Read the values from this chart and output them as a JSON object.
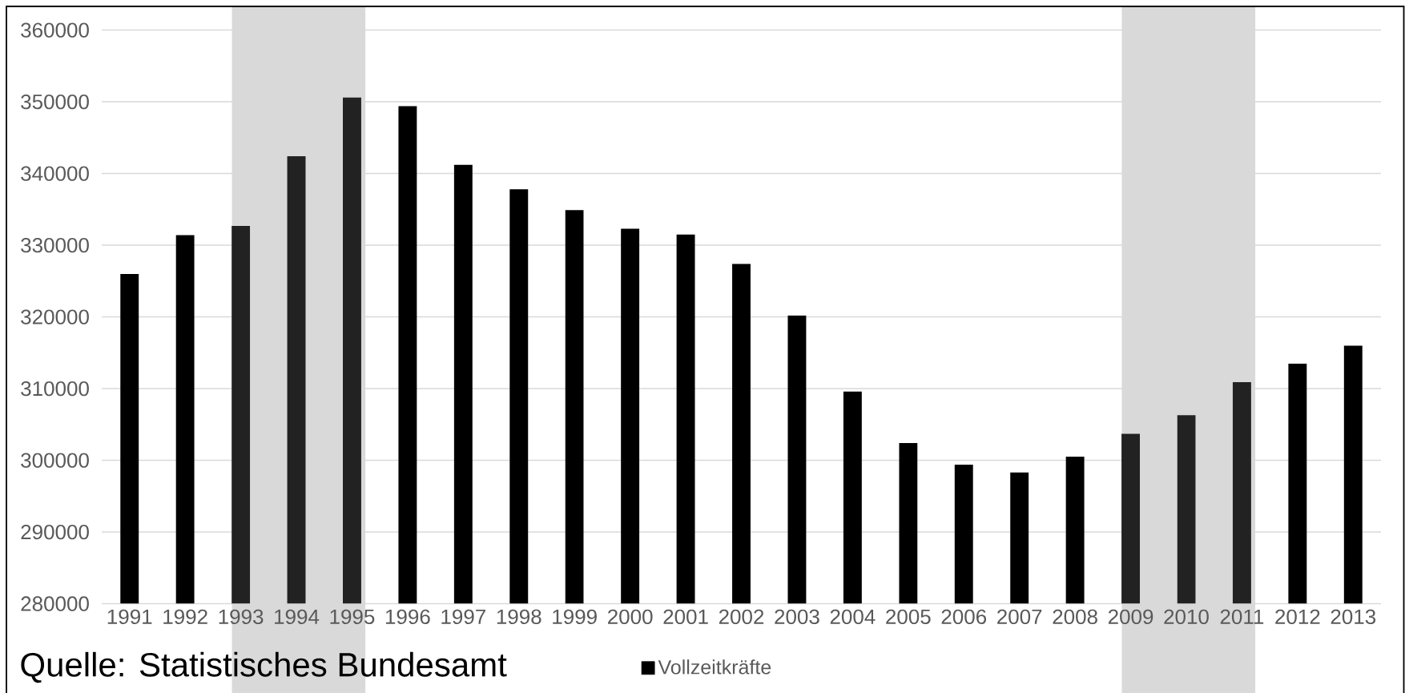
{
  "chart_data": {
    "type": "bar",
    "categories": [
      "1991",
      "1992",
      "1993",
      "1994",
      "1995",
      "1996",
      "1997",
      "1998",
      "1999",
      "2000",
      "2001",
      "2002",
      "2003",
      "2004",
      "2005",
      "2006",
      "2007",
      "2008",
      "2009",
      "2010",
      "2011",
      "2012",
      "2013"
    ],
    "series": [
      {
        "name": "Vollzeitkräfte",
        "color": "#000000",
        "colors": [
          "#000000",
          "#000000",
          "#222222",
          "#222222",
          "#222222",
          "#000000",
          "#000000",
          "#000000",
          "#000000",
          "#000000",
          "#000000",
          "#000000",
          "#000000",
          "#000000",
          "#000000",
          "#000000",
          "#000000",
          "#000000",
          "#222222",
          "#222222",
          "#222222",
          "#000000",
          "#000000"
        ],
        "values": [
          326000,
          331400,
          332700,
          342400,
          350600,
          349400,
          341200,
          337800,
          334900,
          332300,
          331500,
          327400,
          320200,
          309600,
          302400,
          299400,
          298300,
          300500,
          303700,
          306300,
          310900,
          313500,
          316000
        ]
      }
    ],
    "ylim": [
      280000,
      360000
    ],
    "yticks": [
      280000,
      290000,
      300000,
      310000,
      320000,
      330000,
      340000,
      350000,
      360000
    ],
    "grid": "y",
    "legend": "bottom",
    "bands": [
      {
        "axis": "x",
        "from": "1993",
        "to": "1995",
        "color": "#d9d9d9"
      },
      {
        "axis": "x",
        "from": "2009",
        "to": "2011",
        "color": "#d9d9d9"
      }
    ],
    "annotations": [
      "Quelle: Statistisches Bundesamt"
    ]
  }
}
